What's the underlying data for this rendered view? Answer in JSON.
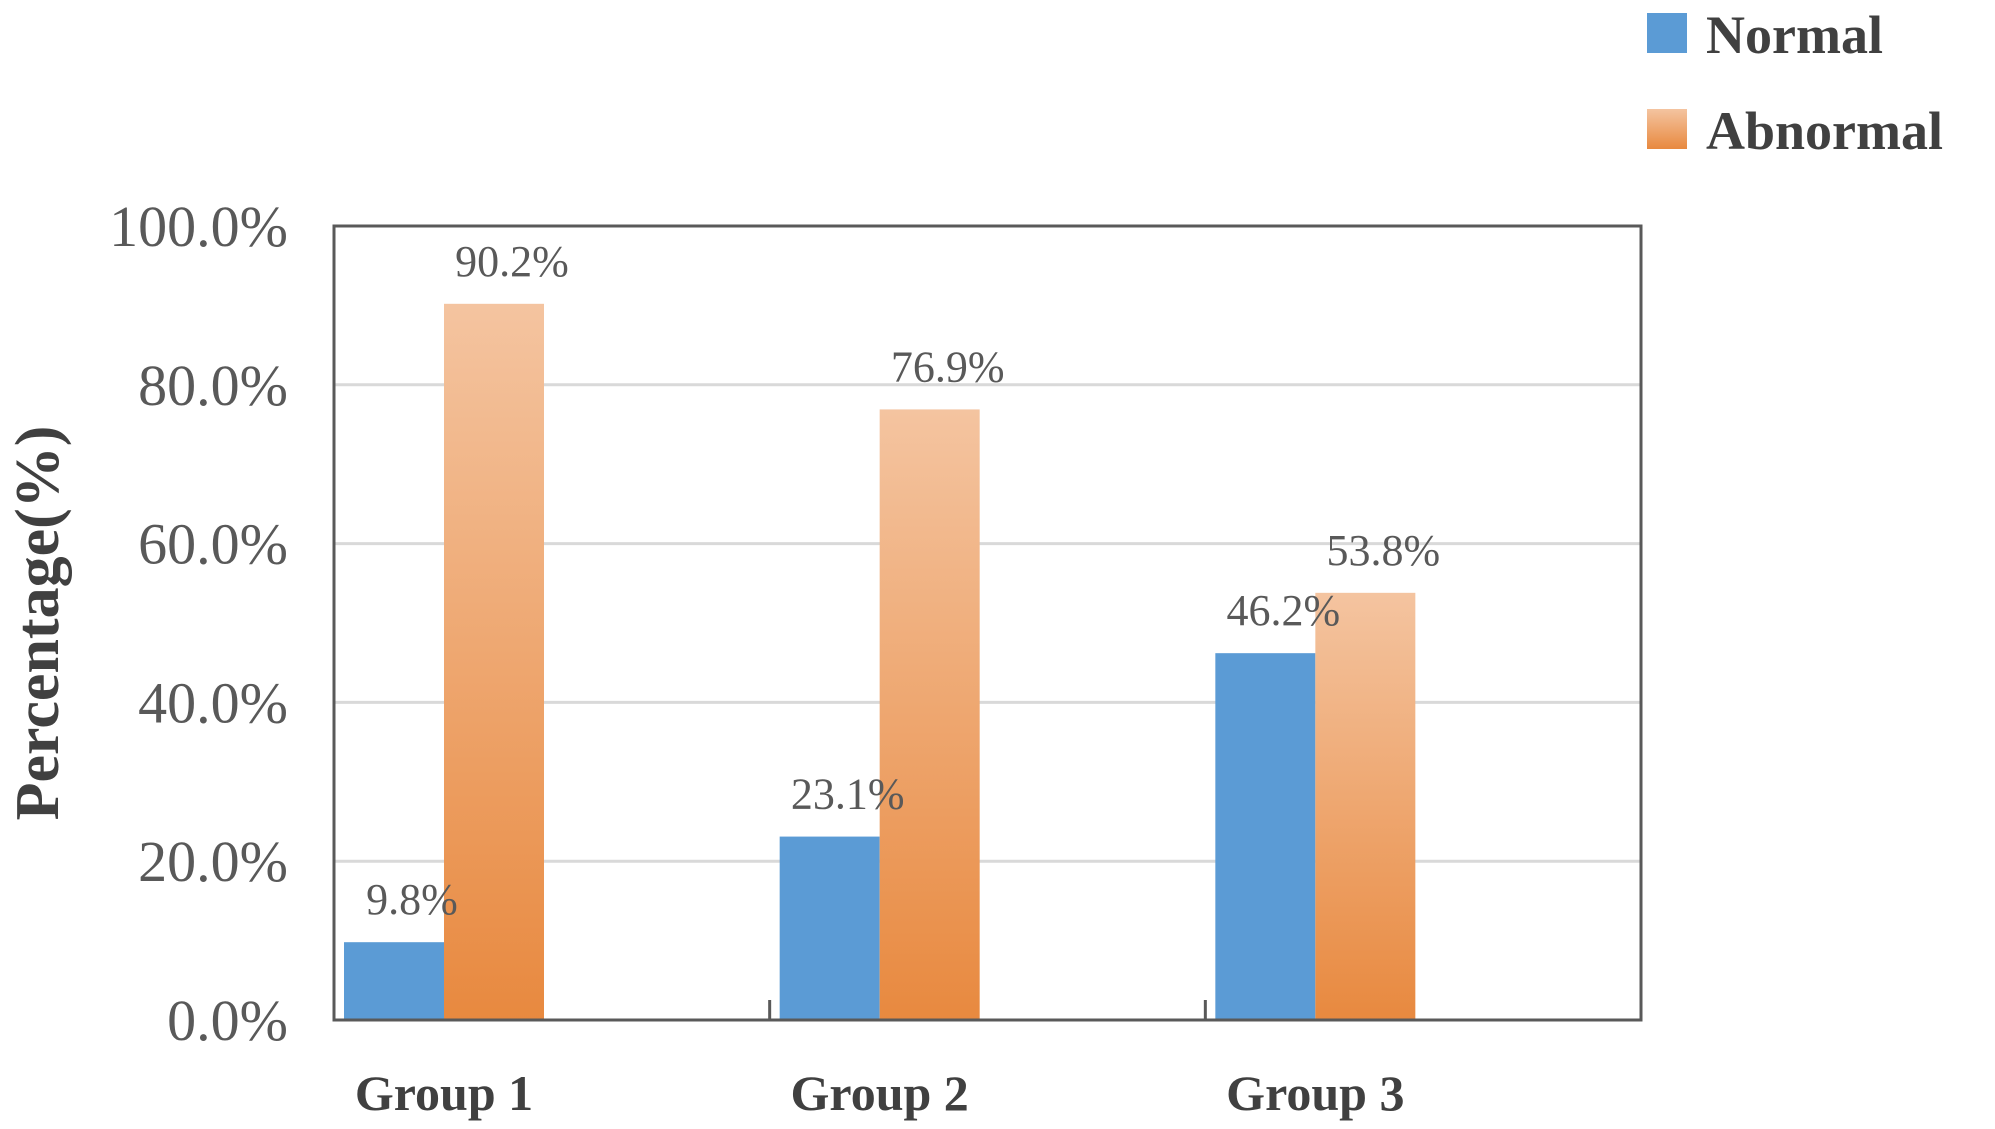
{
  "chart_data": {
    "type": "bar",
    "categories": [
      "Group 1",
      "Group 2",
      "Group 3"
    ],
    "series": [
      {
        "name": "Normal",
        "values": [
          9.8,
          23.1,
          46.2
        ],
        "labels": [
          "9.8%",
          "23.1%",
          "46.2%"
        ],
        "color": "#5b9bd5"
      },
      {
        "name": "Abnormal",
        "values": [
          90.2,
          76.9,
          53.8
        ],
        "labels": [
          "90.2%",
          "76.9%",
          "53.8%"
        ],
        "color_top": "#f4c4a0",
        "color_bottom": "#e8893f"
      }
    ],
    "ylabel": "Percentage(%)",
    "xlabel": "",
    "ylim": [
      0,
      100
    ],
    "yticks": [
      0,
      20,
      40,
      60,
      80,
      100
    ],
    "ytick_labels": [
      "0.0%",
      "20.0%",
      "40.0%",
      "60.0%",
      "80.0%",
      "100.0%"
    ],
    "grid": true,
    "legend_position": "top-right"
  }
}
